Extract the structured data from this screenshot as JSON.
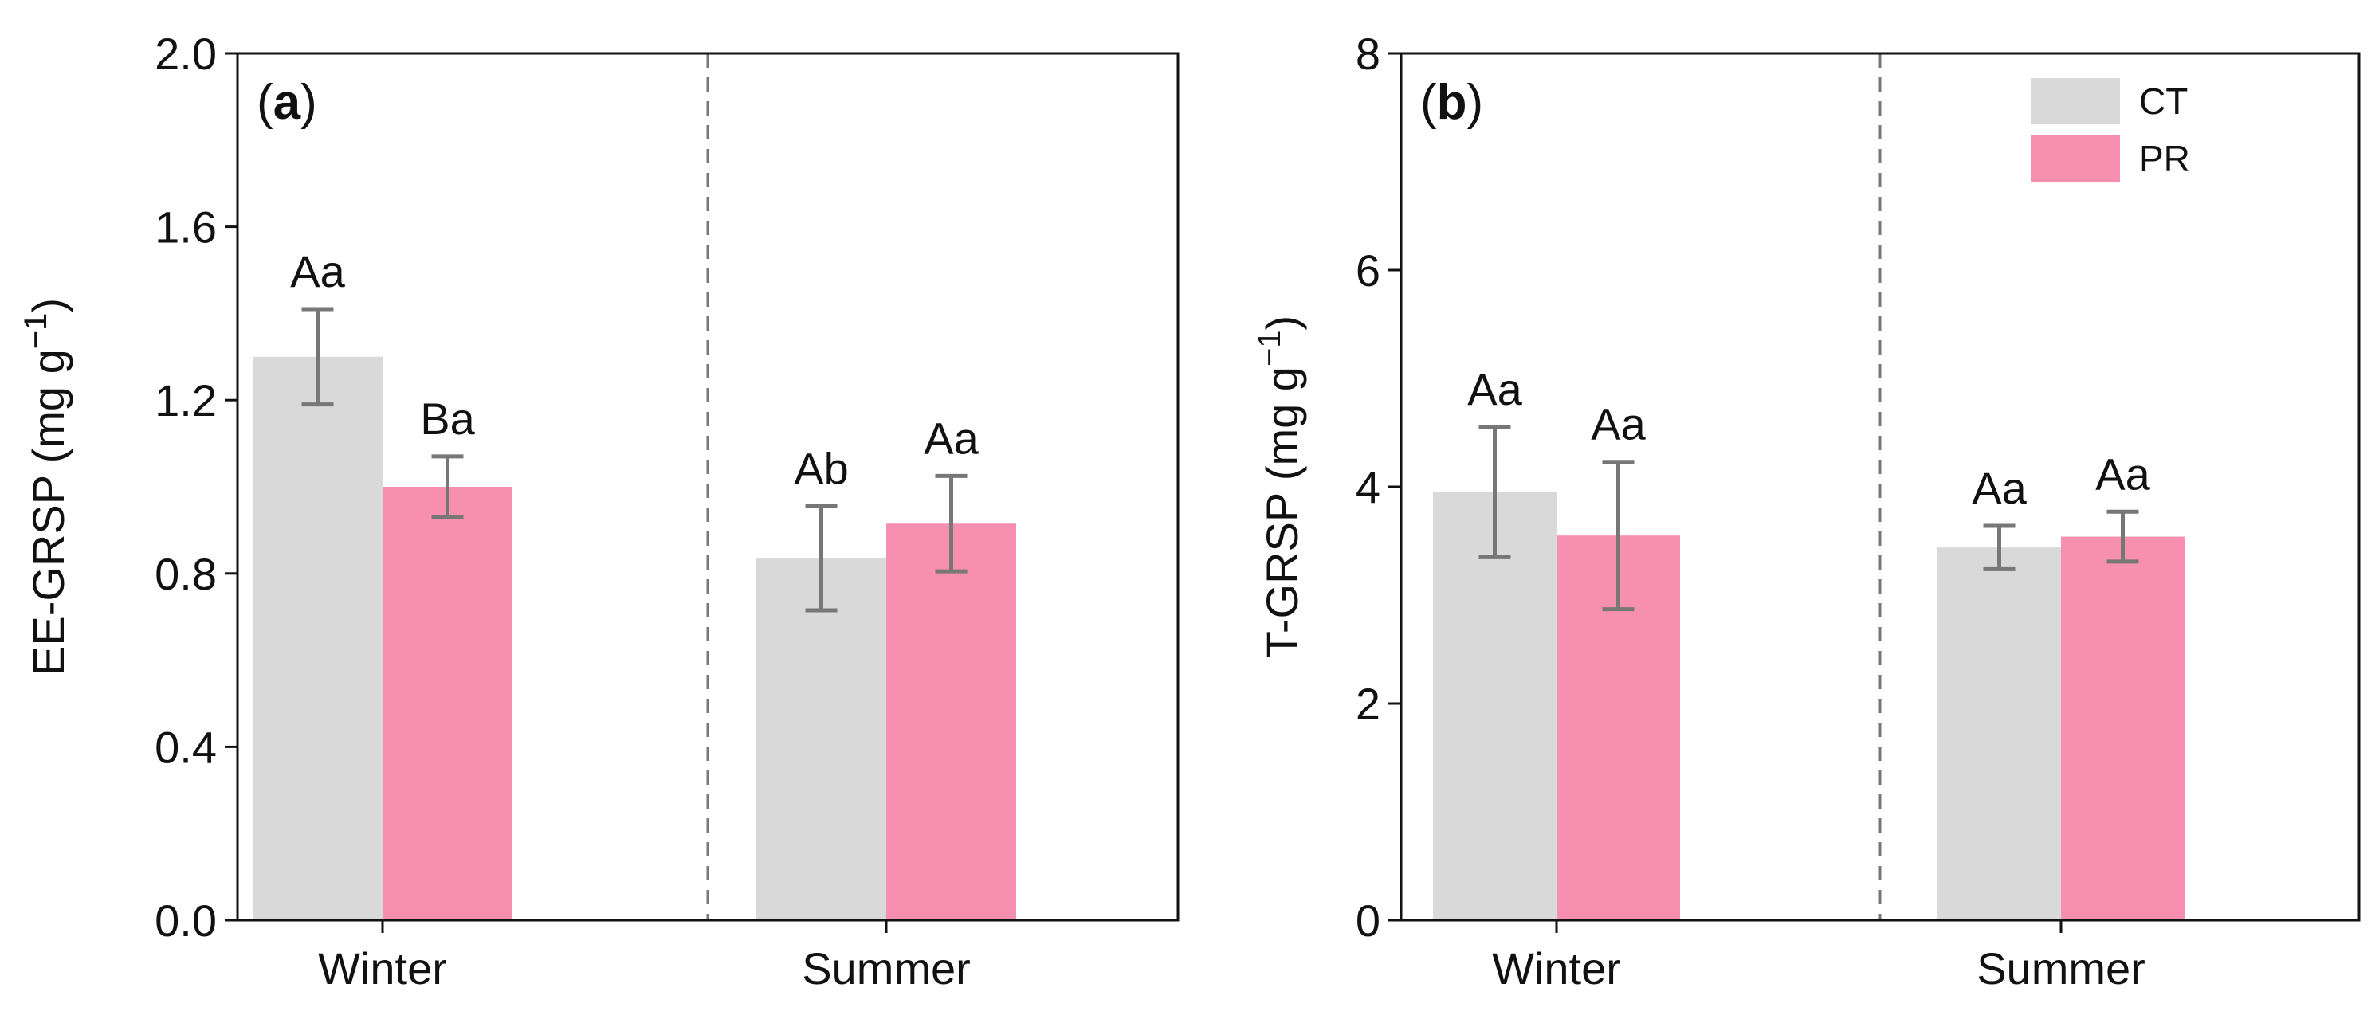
{
  "chart_data": [
    {
      "type": "bar",
      "panel": "(a)",
      "panel_letter": "a",
      "ylabel": "EE-GRSP (mg g",
      "ylabel_exp": "−1",
      "ylim": [
        0,
        2.0
      ],
      "yticks": [
        "0.0",
        "0.4",
        "0.8",
        "1.2",
        "1.6",
        "2.0"
      ],
      "ytick_values": [
        0,
        0.4,
        0.8,
        1.2,
        1.6,
        2.0
      ],
      "categories": [
        "Winter",
        "Summer"
      ],
      "series": [
        {
          "name": "CT",
          "values": [
            1.3,
            0.835
          ],
          "errors": [
            0.11,
            0.12
          ],
          "letters": [
            "Aa",
            "Ab"
          ]
        },
        {
          "name": "PR",
          "values": [
            1.0,
            0.915
          ],
          "errors": [
            0.07,
            0.11
          ],
          "letters": [
            "Ba",
            "Aa"
          ]
        }
      ]
    },
    {
      "type": "bar",
      "panel": "(b)",
      "panel_letter": "b",
      "ylabel": "T-GRSP (mg g",
      "ylabel_exp": "−1",
      "ylim": [
        0,
        8
      ],
      "yticks": [
        "0",
        "2",
        "4",
        "6",
        "8"
      ],
      "ytick_values": [
        0,
        2,
        4,
        6,
        8
      ],
      "categories": [
        "Winter",
        "Summer"
      ],
      "series": [
        {
          "name": "CT",
          "values": [
            3.95,
            3.44
          ],
          "errors": [
            0.6,
            0.2
          ],
          "letters": [
            "Aa",
            "Aa"
          ]
        },
        {
          "name": "PR",
          "values": [
            3.55,
            3.54
          ],
          "errors": [
            0.68,
            0.23
          ],
          "letters": [
            "Aa",
            "Aa"
          ]
        }
      ]
    }
  ],
  "legend": [
    {
      "label": "CT",
      "color": "#d9d9d9"
    },
    {
      "label": "PR",
      "color": "#f78fb0"
    }
  ],
  "colors": {
    "CT": "#d9d9d9",
    "PR": "#f78fb0",
    "error_bar": "#777777",
    "divider": "#777777"
  }
}
